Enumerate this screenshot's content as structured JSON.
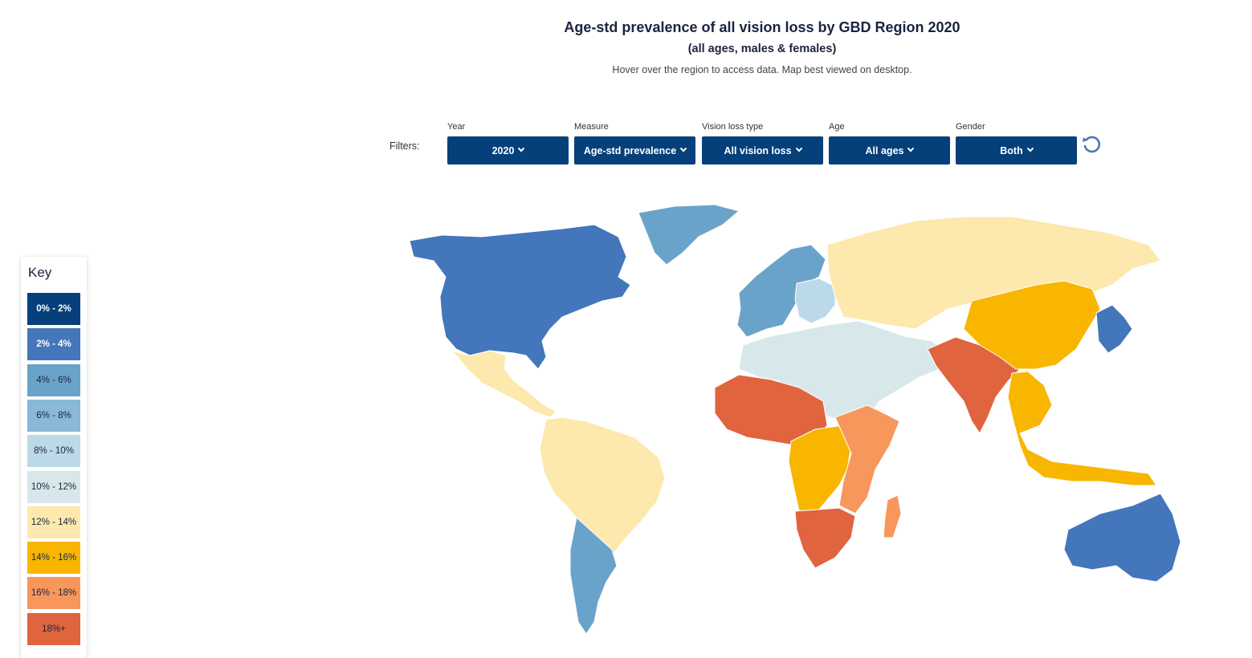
{
  "header": {
    "title": "Age-std prevalence of all vision loss by GBD Region 2020",
    "subtitle": "(all ages, males & females)",
    "instruction": "Hover over the region to access data. Map best viewed on desktop."
  },
  "filters": {
    "label": "Filters:",
    "items": [
      {
        "label": "Year",
        "value": "2020"
      },
      {
        "label": "Measure",
        "value": "Age-std prevalence"
      },
      {
        "label": "Vision loss type",
        "value": "All vision loss"
      },
      {
        "label": "Age",
        "value": "All ages"
      },
      {
        "label": "Gender",
        "value": "Both"
      }
    ],
    "reset_icon": "reset-icon"
  },
  "key": {
    "title": "Key",
    "items": [
      {
        "label": "0% - 2%",
        "color": "#05407a",
        "text_color": "#ffffff"
      },
      {
        "label": "2% - 4%",
        "color": "#4376bb",
        "text_color": "#ffffff"
      },
      {
        "label": "4% - 6%",
        "color": "#6aa3c9",
        "text_color": "#1c2340"
      },
      {
        "label": "6% - 8%",
        "color": "#89b8d9",
        "text_color": "#1c2340"
      },
      {
        "label": "8% - 10%",
        "color": "#bcd9e8",
        "text_color": "#1c2340"
      },
      {
        "label": "10% - 12%",
        "color": "#d8e7ea",
        "text_color": "#1c2340"
      },
      {
        "label": "12% - 14%",
        "color": "#fde8ad",
        "text_color": "#1c2340"
      },
      {
        "label": "14% - 16%",
        "color": "#f8b600",
        "text_color": "#1c2340"
      },
      {
        "label": "16% - 18%",
        "color": "#f7975c",
        "text_color": "#1c2340"
      },
      {
        "label": "18%+",
        "color": "#e0643e",
        "text_color": "#1c2340"
      }
    ]
  },
  "map": {
    "regions": [
      {
        "name": "North America",
        "color": "#4376bb"
      },
      {
        "name": "Greenland",
        "color": "#6aa3c9"
      },
      {
        "name": "Mexico & Central America",
        "color": "#fde8ad"
      },
      {
        "name": "South America",
        "color": "#fde8ad"
      },
      {
        "name": "Southern South America",
        "color": "#6aa3c9"
      },
      {
        "name": "Western Europe",
        "color": "#6aa3c9"
      },
      {
        "name": "Central Europe",
        "color": "#bcd9e8"
      },
      {
        "name": "Russia & Central Asia",
        "color": "#fde8ad"
      },
      {
        "name": "North Africa & Middle East",
        "color": "#d8e7ea"
      },
      {
        "name": "Western Sub-Saharan Africa",
        "color": "#e0643e"
      },
      {
        "name": "Central Sub-Saharan Africa",
        "color": "#f8b600"
      },
      {
        "name": "Eastern Sub-Saharan Africa",
        "color": "#f7975c"
      },
      {
        "name": "Southern Sub-Saharan Africa",
        "color": "#e0643e"
      },
      {
        "name": "South Asia",
        "color": "#e0643e"
      },
      {
        "name": "East Asia",
        "color": "#f8b600"
      },
      {
        "name": "Southeast Asia",
        "color": "#f8b600"
      },
      {
        "name": "Japan & Korea",
        "color": "#4376bb"
      },
      {
        "name": "Australasia",
        "color": "#4376bb"
      },
      {
        "name": "Madagascar",
        "color": "#f7975c"
      }
    ]
  }
}
